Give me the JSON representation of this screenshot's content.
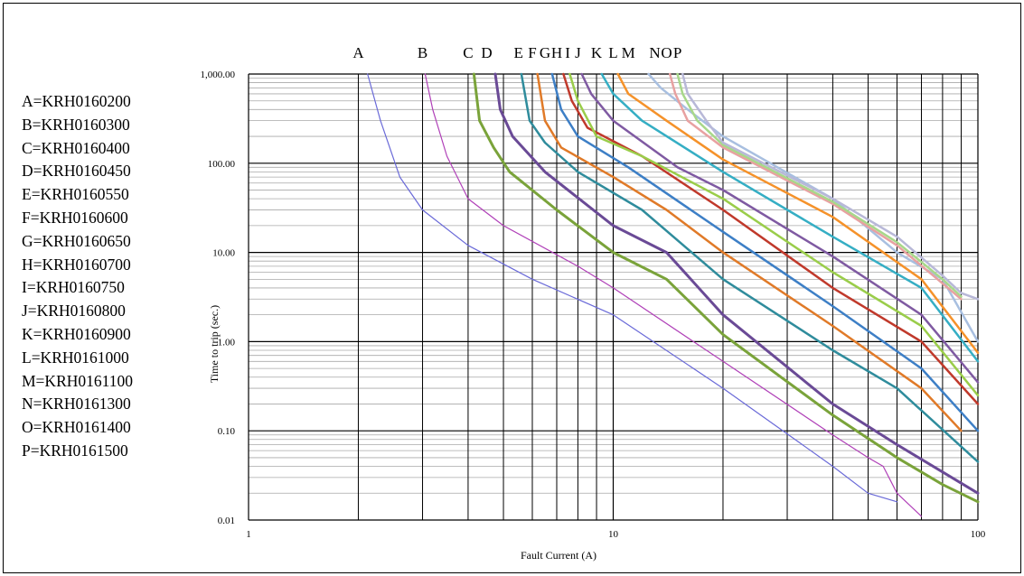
{
  "chart_data": {
    "type": "line",
    "title": "",
    "xlabel": "Fault Current (A)",
    "ylabel": "Time to trip (sec.)",
    "x_scale": "log",
    "y_scale": "log",
    "xlim": [
      1,
      100
    ],
    "ylim": [
      0.01,
      1000
    ],
    "x_ticks": [
      1,
      10,
      100
    ],
    "x_tick_labels": [
      "1",
      "10",
      "100"
    ],
    "y_ticks": [
      0.01,
      0.1,
      1,
      10,
      100,
      1000
    ],
    "y_tick_labels": [
      "0.01",
      "0.10",
      "1.00",
      "10.00",
      "100.00",
      "1,000.00"
    ],
    "grid": true,
    "top_markers": [
      {
        "label": "A",
        "x": 2
      },
      {
        "label": "B",
        "x": 3
      },
      {
        "label": "C",
        "x": 4
      },
      {
        "label": "D",
        "x": 4.5
      },
      {
        "label": "E",
        "x": 5.5
      },
      {
        "label": "F",
        "x": 6
      },
      {
        "label": "G",
        "x": 6.5
      },
      {
        "label": "H",
        "x": 7
      },
      {
        "label": "I",
        "x": 7.5
      },
      {
        "label": "J",
        "x": 8
      },
      {
        "label": "K",
        "x": 9
      },
      {
        "label": "L",
        "x": 10
      },
      {
        "label": "M",
        "x": 11
      },
      {
        "label": "N",
        "x": 13
      },
      {
        "label": "O",
        "x": 14
      },
      {
        "label": "P",
        "x": 15
      }
    ],
    "legend": [
      "A=KRH0160200",
      "B=KRH0160300",
      "C=KRH0160400",
      "D=KRH0160450",
      "E=KRH0160550",
      "F=KRH0160600",
      "G=KRH0160650",
      "H=KRH0160700",
      "I=KRH0160750",
      "J=KRH0160800",
      "K=KRH0160900",
      "L=KRH0161000",
      "M=KRH0161100",
      "N=KRH0161300",
      "O=KRH0161400",
      "P=KRH0161500"
    ],
    "legend_position": "left",
    "series": [
      {
        "color": "#6a6ad8",
        "width": 1.2,
        "points": [
          [
            2.12,
            1000
          ],
          [
            2.3,
            300
          ],
          [
            2.6,
            70
          ],
          [
            3,
            30
          ],
          [
            4,
            12
          ],
          [
            6,
            5
          ],
          [
            10,
            2
          ],
          [
            20,
            0.3
          ],
          [
            40,
            0.04
          ],
          [
            50,
            0.02
          ],
          [
            60,
            0.016
          ]
        ]
      },
      {
        "color": "#b040b8",
        "width": 1.2,
        "points": [
          [
            3.05,
            1000
          ],
          [
            3.2,
            400
          ],
          [
            3.5,
            120
          ],
          [
            4,
            40
          ],
          [
            5,
            20
          ],
          [
            8,
            7
          ],
          [
            10,
            4
          ],
          [
            20,
            0.6
          ],
          [
            40,
            0.09
          ],
          [
            50,
            0.05
          ],
          [
            55,
            0.04
          ],
          [
            60,
            0.02
          ],
          [
            70,
            0.011
          ]
        ]
      },
      {
        "color": "#7aa33a",
        "width": 3,
        "points": [
          [
            4.15,
            1000
          ],
          [
            4.3,
            300
          ],
          [
            4.7,
            150
          ],
          [
            5.2,
            80
          ],
          [
            7,
            30
          ],
          [
            10,
            10
          ],
          [
            14,
            5
          ],
          [
            20,
            1.2
          ],
          [
            40,
            0.15
          ],
          [
            60,
            0.05
          ],
          [
            80,
            0.025
          ],
          [
            100,
            0.016
          ]
        ]
      },
      {
        "color": "#6a4a96",
        "width": 3,
        "points": [
          [
            4.75,
            1000
          ],
          [
            4.9,
            400
          ],
          [
            5.3,
            200
          ],
          [
            6.5,
            80
          ],
          [
            10,
            20
          ],
          [
            14,
            10
          ],
          [
            20,
            2
          ],
          [
            40,
            0.2
          ],
          [
            60,
            0.07
          ],
          [
            100,
            0.02
          ]
        ]
      },
      {
        "color": "#2f8c9c",
        "width": 2.5,
        "points": [
          [
            5.6,
            1000
          ],
          [
            5.9,
            300
          ],
          [
            6.5,
            170
          ],
          [
            8,
            80
          ],
          [
            12,
            30
          ],
          [
            20,
            5
          ],
          [
            40,
            0.8
          ],
          [
            60,
            0.3
          ],
          [
            100,
            0.045
          ]
        ]
      },
      {
        "color": "#e07a28",
        "width": 2.5,
        "points": [
          [
            6.2,
            1000
          ],
          [
            6.5,
            300
          ],
          [
            7.2,
            150
          ],
          [
            10,
            70
          ],
          [
            14,
            30
          ],
          [
            20,
            10
          ],
          [
            40,
            1.5
          ],
          [
            70,
            0.3
          ],
          [
            90,
            0.1
          ]
        ]
      },
      {
        "color": "#3d7fc6",
        "width": 2.5,
        "points": [
          [
            6.8,
            1000
          ],
          [
            7.2,
            400
          ],
          [
            8,
            200
          ],
          [
            11,
            90
          ],
          [
            20,
            17
          ],
          [
            40,
            2.5
          ],
          [
            70,
            0.5
          ],
          [
            100,
            0.1
          ]
        ]
      },
      {
        "color": "#c0392b",
        "width": 2.5,
        "points": [
          [
            7.3,
            1000
          ],
          [
            7.7,
            500
          ],
          [
            8.5,
            250
          ],
          [
            12,
            120
          ],
          [
            20,
            30
          ],
          [
            40,
            4
          ],
          [
            70,
            1
          ],
          [
            100,
            0.2
          ]
        ]
      },
      {
        "color": "#9acd4a",
        "width": 2.5,
        "points": [
          [
            7.6,
            1000
          ],
          [
            8,
            500
          ],
          [
            9,
            200
          ],
          [
            12,
            120
          ],
          [
            20,
            40
          ],
          [
            40,
            6
          ],
          [
            70,
            1.5
          ],
          [
            100,
            0.25
          ]
        ]
      },
      {
        "color": "#7f5aa2",
        "width": 2.5,
        "points": [
          [
            8.2,
            1000
          ],
          [
            8.7,
            600
          ],
          [
            10,
            300
          ],
          [
            15,
            90
          ],
          [
            20,
            50
          ],
          [
            40,
            9
          ],
          [
            70,
            2
          ],
          [
            100,
            0.35
          ]
        ]
      },
      {
        "color": "#35aec4",
        "width": 2.5,
        "points": [
          [
            9.3,
            1000
          ],
          [
            10,
            600
          ],
          [
            12,
            300
          ],
          [
            20,
            80
          ],
          [
            40,
            15
          ],
          [
            70,
            4
          ],
          [
            100,
            0.6
          ]
        ]
      },
      {
        "color": "#f5922a",
        "width": 2.5,
        "points": [
          [
            10.3,
            1000
          ],
          [
            11,
            600
          ],
          [
            14,
            300
          ],
          [
            20,
            110
          ],
          [
            40,
            25
          ],
          [
            70,
            5
          ],
          [
            100,
            0.75
          ]
        ]
      },
      {
        "color": "#a8bfe0",
        "width": 2.5,
        "points": [
          [
            12.5,
            1000
          ],
          [
            13.5,
            700
          ],
          [
            16,
            400
          ],
          [
            20,
            200
          ],
          [
            40,
            40
          ],
          [
            60,
            10
          ],
          [
            80,
            5
          ],
          [
            100,
            1
          ]
        ]
      },
      {
        "color": "#e8a1a1",
        "width": 2.5,
        "points": [
          [
            14.3,
            1000
          ],
          [
            14.8,
            600
          ],
          [
            16,
            300
          ],
          [
            20,
            150
          ],
          [
            40,
            35
          ],
          [
            60,
            12
          ],
          [
            80,
            4.5
          ],
          [
            90,
            3
          ]
        ]
      },
      {
        "color": "#a8d88a",
        "width": 2.5,
        "points": [
          [
            15,
            1000
          ],
          [
            15.5,
            600
          ],
          [
            17,
            300
          ],
          [
            20,
            160
          ],
          [
            40,
            37
          ],
          [
            60,
            13
          ],
          [
            80,
            5
          ],
          [
            90,
            3.2
          ]
        ]
      },
      {
        "color": "#b8b8d8",
        "width": 2.5,
        "points": [
          [
            15.5,
            1000
          ],
          [
            16,
            600
          ],
          [
            18,
            300
          ],
          [
            20,
            170
          ],
          [
            40,
            40
          ],
          [
            60,
            15
          ],
          [
            80,
            5.5
          ],
          [
            90,
            3.5
          ],
          [
            100,
            3
          ]
        ]
      }
    ]
  }
}
